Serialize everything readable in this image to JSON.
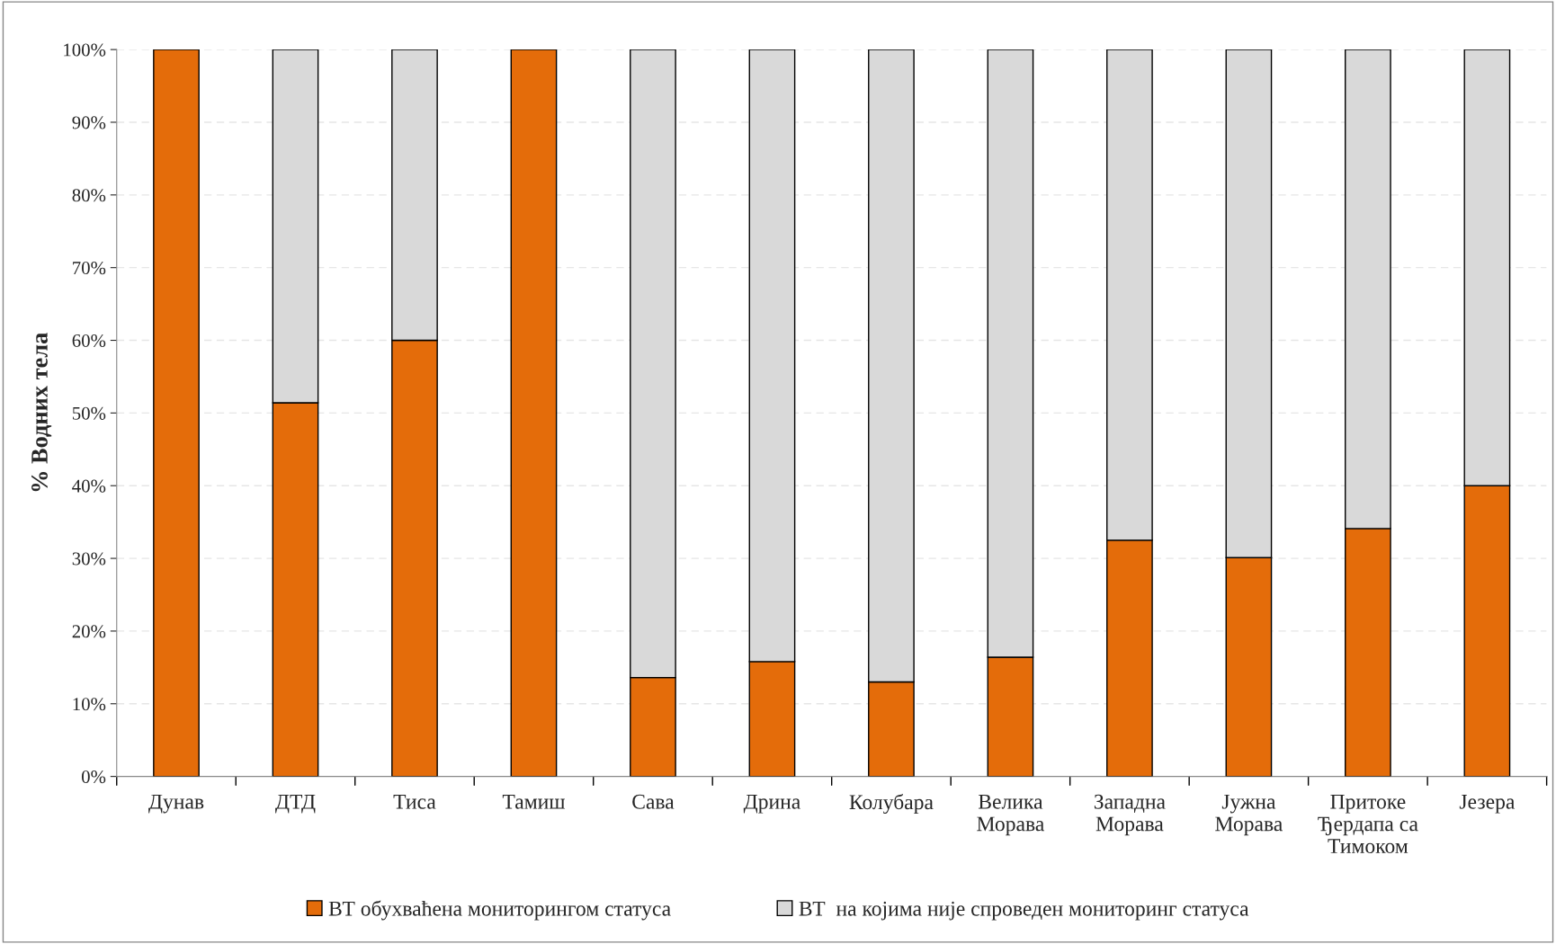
{
  "chart_data": {
    "type": "bar",
    "stacked": true,
    "ylabel": "% Водних тела",
    "categories": [
      "Дунав",
      "ДТД",
      "Тиса",
      "Тамиш",
      "Сава",
      "Дрина",
      "Колубара",
      "Велика\nМорава",
      "Западна\nМорава",
      "Јужна\nМорава",
      "Притоке\nЂердапа са\nТимоком",
      "Језера"
    ],
    "series": [
      {
        "name": "ВТ обухваћена мониторингом статуса",
        "color": "#e46c0a",
        "values": [
          100,
          51.4,
          60,
          100,
          13.6,
          15.8,
          13.0,
          16.4,
          32.5,
          30.1,
          34.1,
          40
        ]
      },
      {
        "name": "ВТ  на којима није спроведен мониторинг статуса",
        "color": "#d9d9d9",
        "values": [
          0,
          48.6,
          40,
          0,
          86.4,
          84.2,
          87.0,
          83.6,
          67.5,
          69.9,
          65.9,
          60
        ]
      }
    ],
    "ylim": [
      0,
      100
    ],
    "yticks": [
      {
        "value": 0,
        "label": "0%"
      },
      {
        "value": 10,
        "label": "10%"
      },
      {
        "value": 20,
        "label": "20%"
      },
      {
        "value": 30,
        "label": "30%"
      },
      {
        "value": 40,
        "label": "40%"
      },
      {
        "value": 50,
        "label": "50%"
      },
      {
        "value": 60,
        "label": "60%"
      },
      {
        "value": 70,
        "label": "70%"
      },
      {
        "value": 80,
        "label": "80%"
      },
      {
        "value": 90,
        "label": "90%"
      },
      {
        "value": 100,
        "label": "100%"
      }
    ],
    "grid": "y",
    "legend": "bottom"
  }
}
